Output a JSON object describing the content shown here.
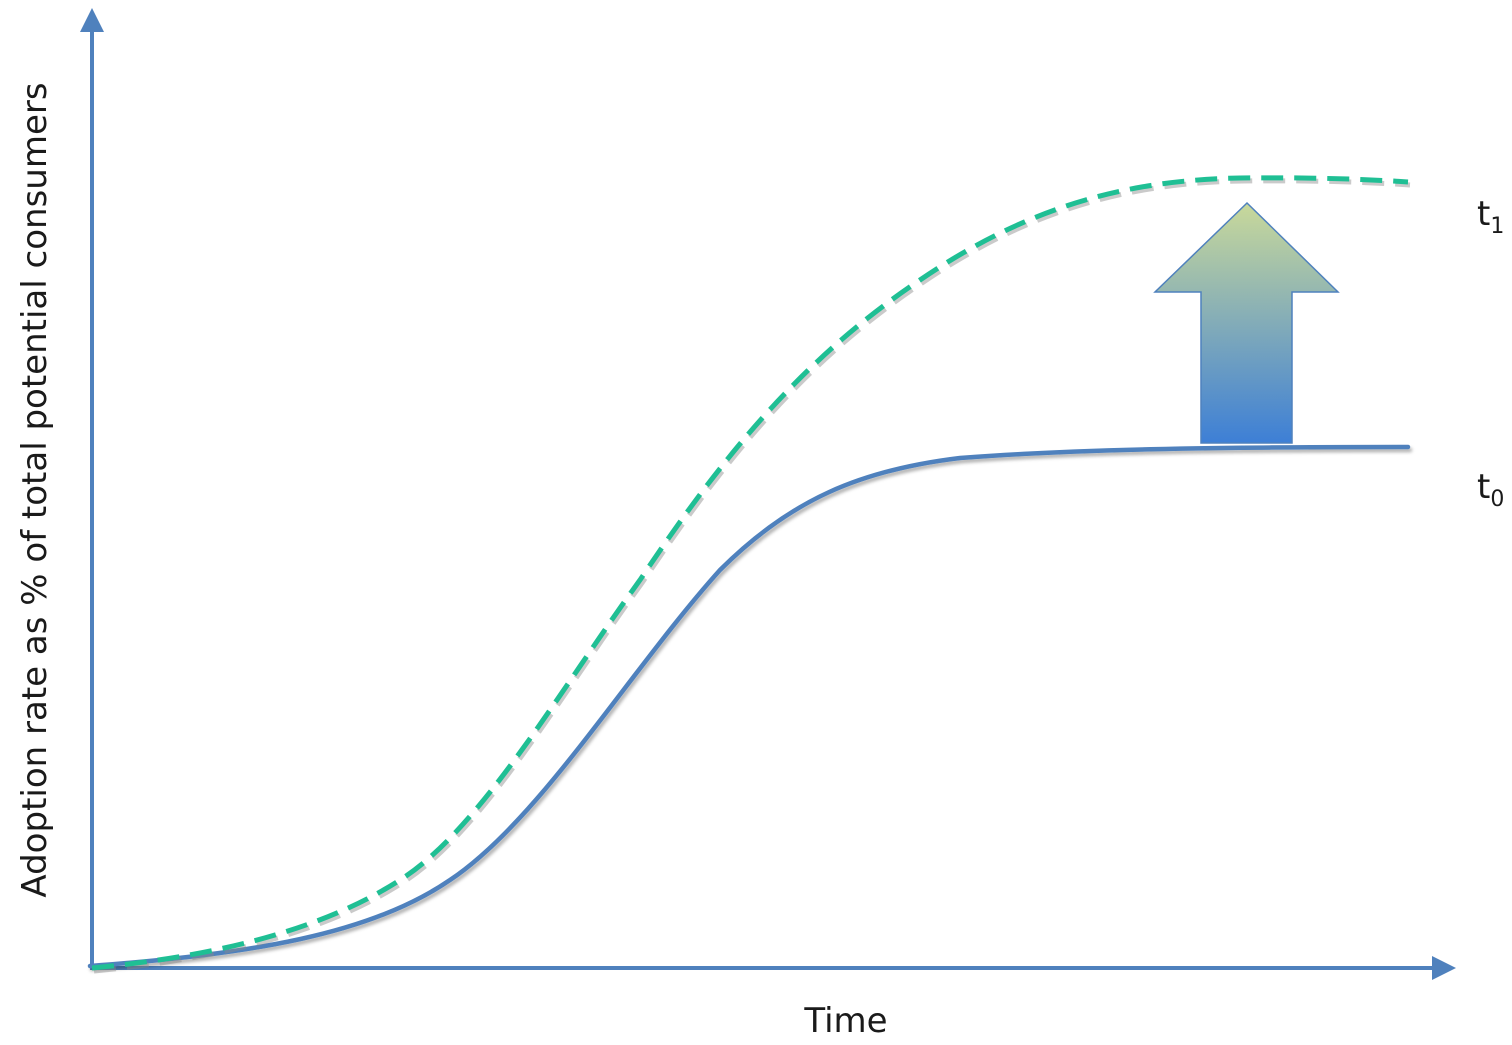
{
  "title": "",
  "axes": {
    "y_label": "Adoption rate as % of total potential consumers",
    "x_label": "Time"
  },
  "curves": {
    "t0": {
      "label_base": "t",
      "label_sub": "0",
      "style": "solid",
      "color": "#4f81bd"
    },
    "t1": {
      "label_base": "t",
      "label_sub": "1",
      "style": "dashed",
      "color": "#1fbf94"
    }
  },
  "shift_arrow": {
    "meaning": "upward shift from t0 to t1",
    "gradient_top": "#c9d99a",
    "gradient_bottom": "#3d7fd6"
  },
  "colors": {
    "axis": "#4f81bd"
  }
}
